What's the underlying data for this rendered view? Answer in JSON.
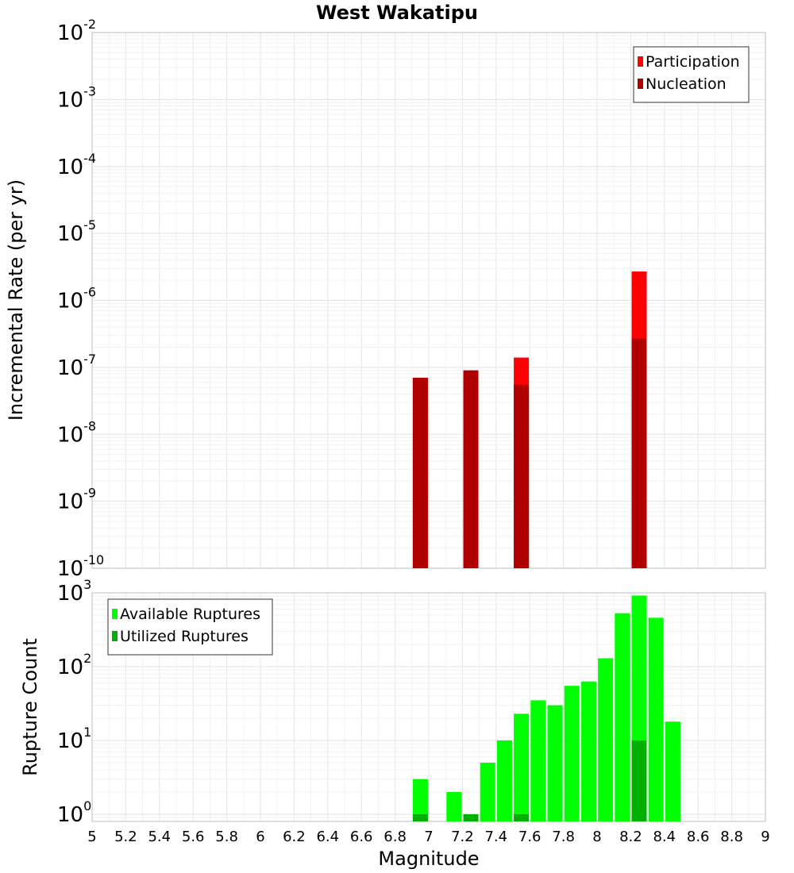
{
  "chart_data": [
    {
      "type": "bar",
      "title": "West Wakatipu",
      "xlabel": "",
      "ylabel": "Incremental Rate (per yr)",
      "y_scale": "log",
      "xlim": [
        5,
        9
      ],
      "ylim": [
        1e-10,
        0.01
      ],
      "y_ticks": [
        {
          "base": "10",
          "exp": "-10",
          "value": 1e-10
        },
        {
          "base": "10",
          "exp": "-9",
          "value": 1e-09
        },
        {
          "base": "10",
          "exp": "-8",
          "value": 1e-08
        },
        {
          "base": "10",
          "exp": "-7",
          "value": 1e-07
        },
        {
          "base": "10",
          "exp": "-6",
          "value": 1e-06
        },
        {
          "base": "10",
          "exp": "-5",
          "value": 1e-05
        },
        {
          "base": "10",
          "exp": "-4",
          "value": 0.0001
        },
        {
          "base": "10",
          "exp": "-3",
          "value": 0.001
        },
        {
          "base": "10",
          "exp": "-2",
          "value": 0.01
        }
      ],
      "legend": {
        "position": "top-right",
        "entries": [
          {
            "label": "Participation",
            "color": "#ff0000"
          },
          {
            "label": "Nucleation",
            "color": "#b00000"
          }
        ]
      },
      "series": [
        {
          "name": "Participation",
          "color": "#ff0000",
          "x": [
            6.95,
            7.25,
            7.55,
            8.25
          ],
          "values": [
            7e-08,
            9e-08,
            1.4e-07,
            2.7e-06
          ]
        },
        {
          "name": "Nucleation",
          "color": "#b00000",
          "x": [
            6.95,
            7.25,
            7.55,
            8.25
          ],
          "values": [
            7e-08,
            9e-08,
            5.5e-08,
            2.7e-07
          ]
        }
      ],
      "grid": true
    },
    {
      "type": "bar",
      "title": "",
      "xlabel": "Magnitude",
      "ylabel": "Rupture Count",
      "y_scale": "log",
      "xlim": [
        5,
        9
      ],
      "ylim": [
        0.8,
        1000
      ],
      "x_ticks": [
        "5",
        "5.2",
        "5.4",
        "5.6",
        "5.8",
        "6",
        "6.2",
        "6.4",
        "6.6",
        "6.8",
        "7",
        "7.2",
        "7.4",
        "7.6",
        "7.8",
        "8",
        "8.2",
        "8.4",
        "8.6",
        "8.8",
        "9"
      ],
      "y_ticks": [
        {
          "base": "10",
          "exp": "0",
          "value": 1
        },
        {
          "base": "10",
          "exp": "1",
          "value": 10
        },
        {
          "base": "10",
          "exp": "2",
          "value": 100
        },
        {
          "base": "10",
          "exp": "3",
          "value": 1000
        }
      ],
      "legend": {
        "position": "top-left",
        "entries": [
          {
            "label": "Available Ruptures",
            "color": "#00ff00"
          },
          {
            "label": "Utilized Ruptures",
            "color": "#00b000"
          }
        ]
      },
      "series": [
        {
          "name": "Available Ruptures",
          "color": "#00ff00",
          "x": [
            6.95,
            7.15,
            7.25,
            7.35,
            7.45,
            7.55,
            7.65,
            7.75,
            7.85,
            7.95,
            8.05,
            8.15,
            8.25,
            8.35,
            8.45
          ],
          "values": [
            3,
            2,
            1,
            5,
            10,
            23,
            35,
            30,
            55,
            63,
            130,
            530,
            920,
            460,
            18
          ]
        },
        {
          "name": "Utilized Ruptures",
          "color": "#00b000",
          "x": [
            6.95,
            7.25,
            7.55,
            8.25
          ],
          "values": [
            1,
            1,
            1,
            10
          ]
        }
      ],
      "grid": true
    }
  ]
}
